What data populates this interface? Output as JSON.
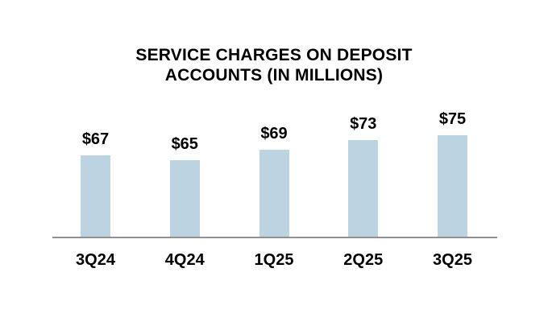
{
  "title": {
    "line1": "SERVICE CHARGES ON DEPOSIT",
    "line2": "ACCOUNTS (IN MILLIONS)"
  },
  "chart_data": {
    "type": "bar",
    "title": "SERVICE CHARGES ON DEPOSIT ACCOUNTS (IN MILLIONS)",
    "categories": [
      "3Q24",
      "4Q24",
      "1Q25",
      "2Q25",
      "3Q25"
    ],
    "values": [
      67,
      65,
      69,
      73,
      75
    ],
    "data_labels": [
      "$67",
      "$65",
      "$69",
      "$73",
      "$75"
    ],
    "xlabel": "",
    "ylabel": "",
    "ylim": [
      34,
      80
    ],
    "grid": false,
    "legend": false,
    "bar_color": "#BCD4E1",
    "axis_line_color": "#909090",
    "text_color": "#000000",
    "background_color": "#FFFFFF"
  }
}
